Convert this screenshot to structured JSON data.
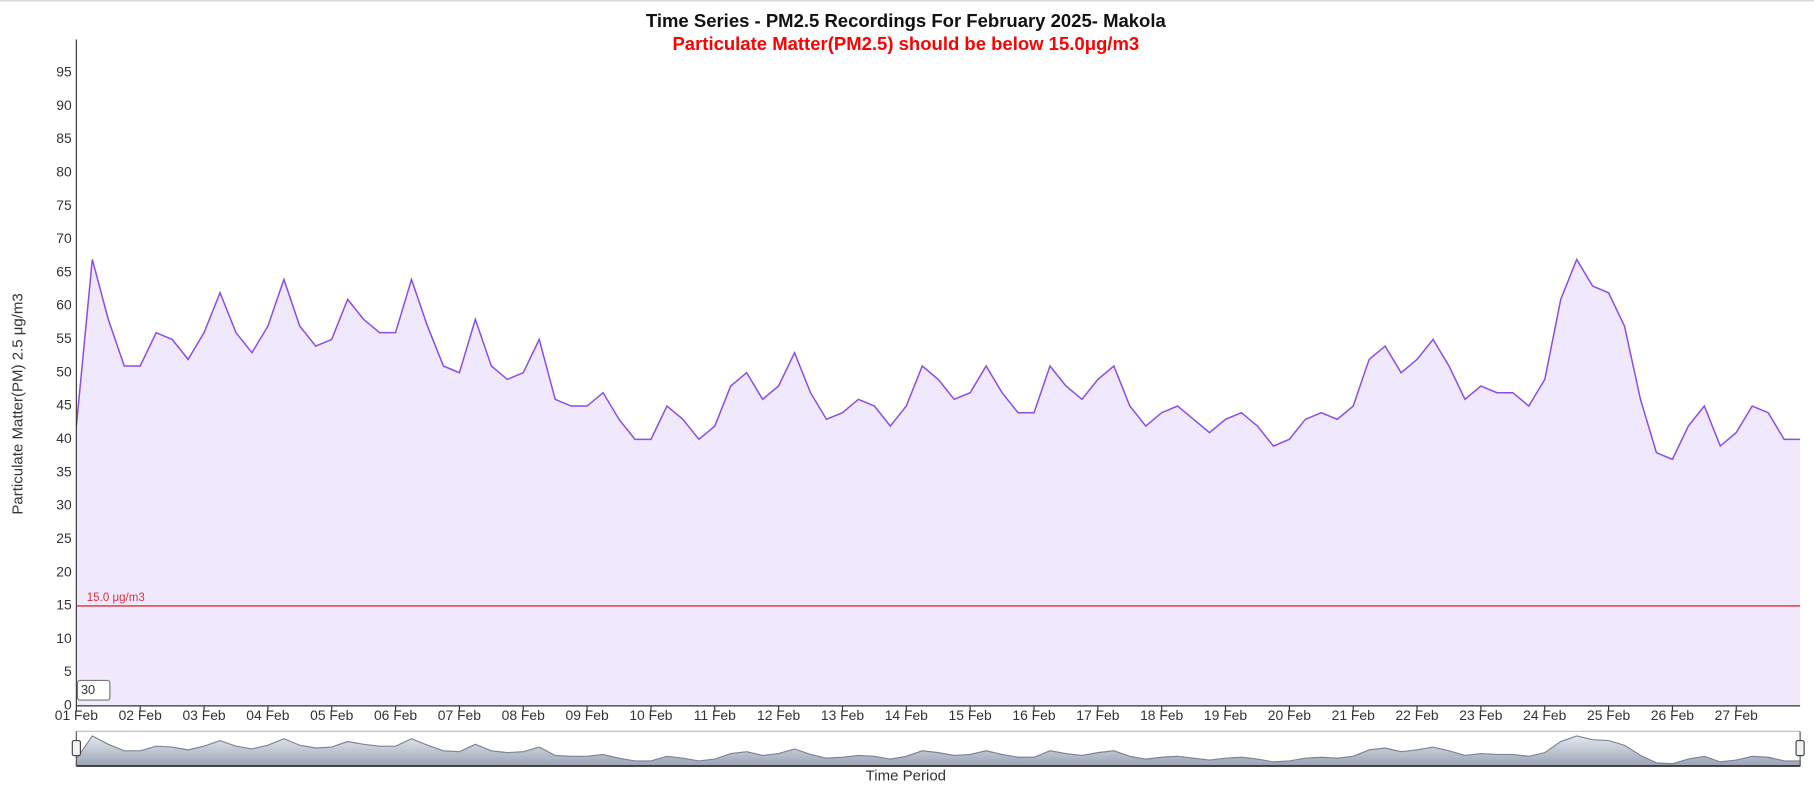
{
  "chart_data": {
    "type": "area",
    "title": "Time Series - PM2.5 Recordings For February 2025- Makola",
    "subtitle": "Particulate Matter(PM2.5) should be below 15.0μg/m3",
    "y_label": "Particulate Matter(PM) 2.5 μg/m3",
    "x_label": "Time Period",
    "range_input": "30",
    "threshold": {
      "value": 15,
      "label": "15.0 μg/m3",
      "color": "#e0303a"
    },
    "series": [
      {
        "name": "PM2.5",
        "color": "#8b4dea",
        "fill": "#f0e9fd",
        "values": [
          42,
          67,
          58,
          51,
          51,
          56,
          55,
          52,
          56,
          62,
          56,
          53,
          57,
          64,
          57,
          54,
          55,
          61,
          58,
          56,
          56,
          64,
          57,
          51,
          50,
          58,
          51,
          49,
          50,
          55,
          46,
          45,
          45,
          47,
          43,
          40,
          40,
          45,
          43,
          40,
          42,
          48,
          50,
          46,
          48,
          53,
          47,
          43,
          44,
          46,
          45,
          42,
          45,
          51,
          49,
          46,
          47,
          51,
          47,
          44,
          44,
          51,
          48,
          46,
          49,
          51,
          45,
          42,
          44,
          45,
          43,
          41,
          43,
          44,
          42,
          39,
          40,
          43,
          44,
          43,
          45,
          52,
          54,
          50,
          52,
          55,
          51,
          46,
          48,
          47,
          47,
          45,
          49,
          61,
          67,
          63,
          62,
          57,
          46,
          38,
          37,
          42,
          45,
          39,
          41,
          45,
          44,
          40,
          40
        ]
      }
    ],
    "x": [
      1,
      1.25,
      1.5,
      1.75,
      2,
      2.25,
      2.5,
      2.75,
      3,
      3.25,
      3.5,
      3.75,
      4,
      4.25,
      4.5,
      4.75,
      5,
      5.25,
      5.5,
      5.75,
      6,
      6.25,
      6.5,
      6.75,
      7,
      7.25,
      7.5,
      7.75,
      8,
      8.25,
      8.5,
      8.75,
      9,
      9.25,
      9.5,
      9.75,
      10,
      10.25,
      10.5,
      10.75,
      11,
      11.25,
      11.5,
      11.75,
      12,
      12.25,
      12.5,
      12.75,
      13,
      13.25,
      13.5,
      13.75,
      14,
      14.25,
      14.5,
      14.75,
      15,
      15.25,
      15.5,
      15.75,
      16,
      16.25,
      16.5,
      16.75,
      17,
      17.25,
      17.5,
      17.75,
      18,
      18.25,
      18.5,
      18.75,
      19,
      19.25,
      19.5,
      19.75,
      20,
      20.25,
      20.5,
      20.75,
      21,
      21.25,
      21.5,
      21.75,
      22,
      22.25,
      22.5,
      22.75,
      23,
      23.25,
      23.5,
      23.75,
      24,
      24.25,
      24.5,
      24.75,
      25,
      25.25,
      25.5,
      25.75,
      26,
      26.25,
      26.5,
      26.75,
      27,
      27.25,
      27.5,
      27.75,
      28
    ],
    "xlim": [
      1,
      28
    ],
    "xticks": [
      {
        "value": 1,
        "label": "01 Feb"
      },
      {
        "value": 2,
        "label": "02 Feb"
      },
      {
        "value": 3,
        "label": "03 Feb"
      },
      {
        "value": 4,
        "label": "04 Feb"
      },
      {
        "value": 5,
        "label": "05 Feb"
      },
      {
        "value": 6,
        "label": "06 Feb"
      },
      {
        "value": 7,
        "label": "07 Feb"
      },
      {
        "value": 8,
        "label": "08 Feb"
      },
      {
        "value": 9,
        "label": "09 Feb"
      },
      {
        "value": 10,
        "label": "10 Feb"
      },
      {
        "value": 11,
        "label": "11 Feb"
      },
      {
        "value": 12,
        "label": "12 Feb"
      },
      {
        "value": 13,
        "label": "13 Feb"
      },
      {
        "value": 14,
        "label": "14 Feb"
      },
      {
        "value": 15,
        "label": "15 Feb"
      },
      {
        "value": 16,
        "label": "16 Feb"
      },
      {
        "value": 17,
        "label": "17 Feb"
      },
      {
        "value": 18,
        "label": "18 Feb"
      },
      {
        "value": 19,
        "label": "19 Feb"
      },
      {
        "value": 20,
        "label": "20 Feb"
      },
      {
        "value": 21,
        "label": "21 Feb"
      },
      {
        "value": 22,
        "label": "22 Feb"
      },
      {
        "value": 23,
        "label": "23 Feb"
      },
      {
        "value": 24,
        "label": "24 Feb"
      },
      {
        "value": 25,
        "label": "25 Feb"
      },
      {
        "value": 26,
        "label": "26 Feb"
      },
      {
        "value": 27,
        "label": "27 Feb"
      }
    ],
    "ylim": [
      0,
      100
    ],
    "yticks": [
      0,
      5,
      10,
      15,
      20,
      25,
      30,
      35,
      40,
      45,
      50,
      55,
      60,
      65,
      70,
      75,
      80,
      85,
      90,
      95
    ],
    "grid": false
  }
}
